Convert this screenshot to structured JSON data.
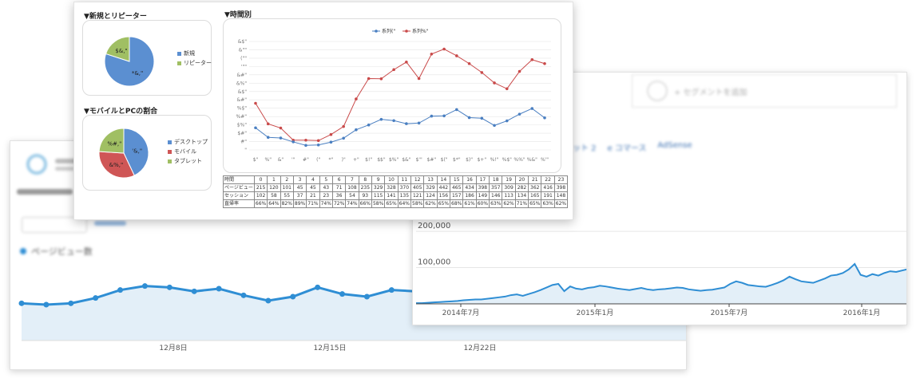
{
  "front": {
    "sec_new_return": "▼新規とリピーター",
    "sec_hourly": "▼時間別",
    "sec_device": "▼モバイルとPCの割合",
    "pie1": {
      "slices": [
        {
          "label": "新規",
          "value": 80,
          "color": "#5b8fd1",
          "text": "*&,\""
        },
        {
          "label": "リピーター",
          "value": 20,
          "color": "#a0bf63",
          "text": "$&,\""
        }
      ]
    },
    "pie2": {
      "slices": [
        {
          "label": "デスクトップ",
          "value": 43,
          "color": "#5b8fd1",
          "text": "'&,\""
        },
        {
          "label": "モバイル",
          "value": 33,
          "color": "#cf5656",
          "text": "&%,\""
        },
        {
          "label": "タブレット",
          "value": 24,
          "color": "#a0bf63",
          "text": "%#,\""
        }
      ]
    },
    "line_legend": [
      "系列(\"",
      "系列%\""
    ],
    "y_ticks": [
      "&$\"",
      "&\"\"",
      "(\"\"",
      "'\"\"",
      "&#\"",
      "&%\"",
      "&$\"",
      "&#\"",
      "%$\"",
      "%#\"",
      "$%\"",
      "$#\"",
      "#\"",
      "\""
    ],
    "x_ticks": [
      "$\"",
      "%\"",
      "&\"",
      "'\"",
      "#\"",
      "(\"",
      "*\"",
      ")\"",
      "+\"",
      "$!\"",
      "$$\"",
      "$%\"",
      "$&\"",
      "$'\"",
      "$#\"",
      "$(\"",
      "$*\"",
      "$)\"",
      "$+\"",
      "%!\"",
      "%$\"",
      "%%\"",
      "%&\"",
      "%'\""
    ],
    "table": {
      "header": "時間",
      "hours": [
        "0",
        "1",
        "2",
        "3",
        "4",
        "5",
        "6",
        "7",
        "8",
        "9",
        "10",
        "11",
        "12",
        "13",
        "14",
        "15",
        "16",
        "17",
        "18",
        "19",
        "20",
        "21",
        "22",
        "23"
      ],
      "rows": [
        {
          "label": "ページビュー",
          "values": [
            "215",
            "120",
            "101",
            "45",
            "45",
            "43",
            "71",
            "108",
            "235",
            "329",
            "328",
            "370",
            "405",
            "329",
            "442",
            "465",
            "434",
            "398",
            "357",
            "309",
            "282",
            "362",
            "416",
            "398"
          ]
        },
        {
          "label": "セッション",
          "values": [
            "102",
            "58",
            "55",
            "37",
            "21",
            "23",
            "36",
            "54",
            "93",
            "115",
            "141",
            "135",
            "121",
            "124",
            "156",
            "157",
            "186",
            "149",
            "146",
            "113",
            "134",
            "165",
            "191",
            "148"
          ]
        },
        {
          "label": "直帰率",
          "values": [
            "66%",
            "64%",
            "82%",
            "89%",
            "71%",
            "74%",
            "72%",
            "74%",
            "66%",
            "58%",
            "65%",
            "64%",
            "58%",
            "62%",
            "65%",
            "68%",
            "61%",
            "60%",
            "63%",
            "62%",
            "71%",
            "65%",
            "63%",
            "62%"
          ]
        }
      ]
    }
  },
  "chart_data": [
    {
      "type": "line",
      "x": [
        "0",
        "1",
        "2",
        "3",
        "4",
        "5",
        "6",
        "7",
        "8",
        "9",
        "10",
        "11",
        "12",
        "13",
        "14",
        "15",
        "16",
        "17",
        "18",
        "19",
        "20",
        "21",
        "22",
        "23"
      ],
      "series": [
        {
          "name": "系列%\"",
          "values": [
            215,
            120,
            101,
            45,
            45,
            43,
            71,
            108,
            235,
            329,
            328,
            370,
            405,
            329,
            442,
            465,
            434,
            398,
            357,
            309,
            282,
            362,
            416,
            398
          ],
          "color": "#c94a4a"
        },
        {
          "name": "系列(\"",
          "values": [
            102,
            58,
            55,
            37,
            21,
            23,
            36,
            54,
            93,
            115,
            141,
            135,
            121,
            124,
            156,
            157,
            186,
            149,
            146,
            113,
            134,
            165,
            191,
            148
          ],
          "color": "#4a7fc1"
        }
      ],
      "ylim": [
        0,
        500
      ]
    },
    {
      "type": "area",
      "values": [
        28,
        27,
        28,
        32,
        38,
        41,
        40,
        37,
        39,
        34,
        30,
        33,
        40,
        35,
        33,
        38,
        37,
        33,
        31,
        31,
        28,
        30,
        34,
        38,
        40,
        36,
        39,
        31
      ],
      "x_labels": [
        "12月8日",
        "12月15日",
        "12月22日"
      ]
    },
    {
      "type": "area",
      "values": [
        2,
        2,
        3,
        4,
        5,
        6,
        7,
        8,
        10,
        11,
        12,
        12,
        14,
        16,
        18,
        20,
        24,
        26,
        22,
        27,
        32,
        38,
        45,
        52,
        55,
        35,
        48,
        42,
        40,
        44,
        46,
        50,
        48,
        45,
        42,
        40,
        38,
        41,
        44,
        40,
        38,
        40,
        41,
        43,
        45,
        44,
        40,
        38,
        36,
        38,
        39,
        42,
        45,
        55,
        62,
        58,
        52,
        50,
        48,
        47,
        52,
        58,
        65,
        75,
        68,
        62,
        60,
        58,
        64,
        70,
        78,
        80,
        85,
        95,
        110,
        80,
        75,
        82,
        78,
        85,
        90,
        88,
        92,
        96
      ],
      "y_ticks": [
        "200,000",
        "100,000"
      ],
      "ylim": [
        0,
        220
      ],
      "x_labels": [
        "2014年7月",
        "2015年1月",
        "2015年7月",
        "2016年1月"
      ]
    }
  ],
  "back_left": {
    "legend": "ページビュー数"
  },
  "back_right": {
    "segment_add": "+ セグメントを追加",
    "tabs": [
      "ット 2",
      "e コマース",
      "AdSense"
    ]
  }
}
